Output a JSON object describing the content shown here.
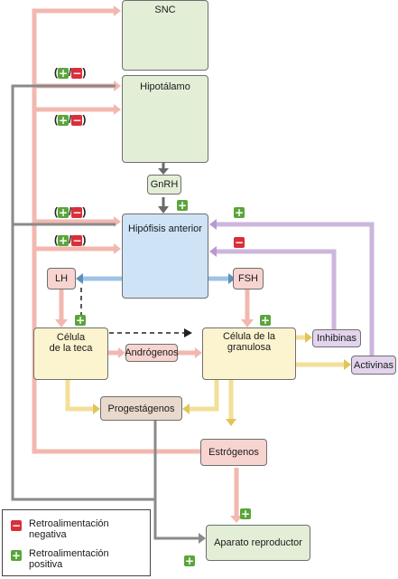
{
  "nodes": {
    "snc": "SNC",
    "hipotalamo": "Hipotálamo",
    "gnrh": "GnRH",
    "hipofisis": "Hipófisis anterior",
    "lh": "LH",
    "fsh": "FSH",
    "celula_teca": "Célula\nde la teca",
    "androgenos": "Andrógenos",
    "celula_granulosa": "Célula de la\ngranulosa",
    "inhibinas": "Inhibinas",
    "activinas": "Activinas",
    "progestagenos": "Progestágenos",
    "estrogenos": "Estrógenos",
    "aparato": "Aparato reproductor"
  },
  "signs": {
    "plus": "+",
    "minus": "−",
    "open": "(",
    "slash": "/",
    "close": ")"
  },
  "legend": {
    "negative": "Retroalimentación\nnegativa",
    "positive": "Retroalimentación\npositiva"
  },
  "colors": {
    "pink_line": "#f2b8b0",
    "blue_line": "#9fc3e6",
    "lavender_line": "#cdb5dd",
    "yellow_line": "#f3df9a",
    "plus": "#5aa53a",
    "minus": "#d92f3a"
  }
}
